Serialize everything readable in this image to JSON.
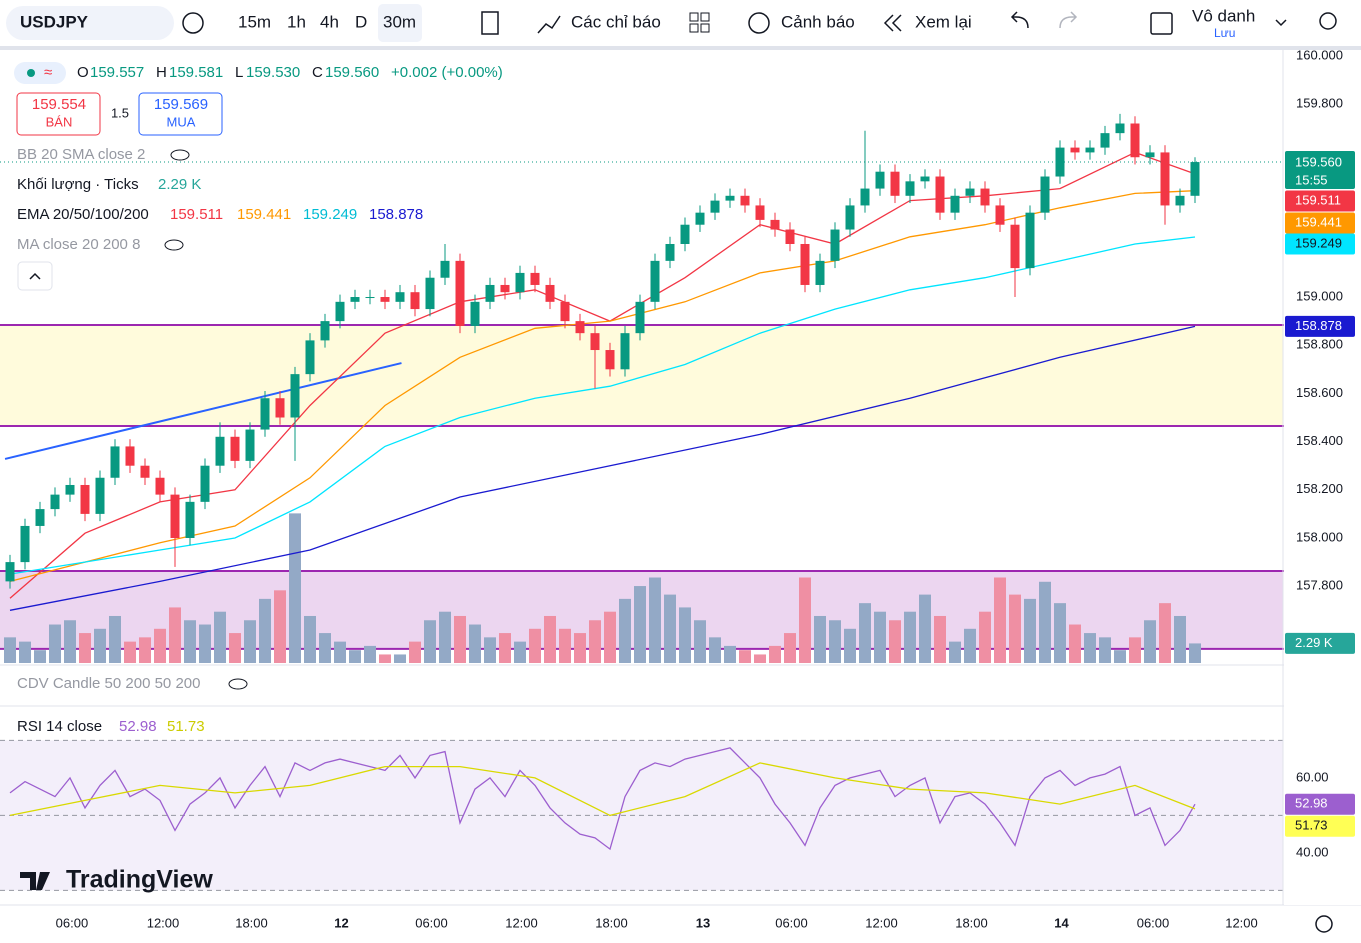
{
  "toolbar": {
    "symbol": "USDJPY",
    "intervals": [
      "15m",
      "1h",
      "4h",
      "D",
      "30m"
    ],
    "indicators": "Các chỉ báo",
    "alerts": "Cảnh báo",
    "replay": "Xem lại",
    "user": "Vô danh",
    "save": "Lưu"
  },
  "chart_data": {
    "type": "candlestick",
    "header": {
      "o": "O",
      "o_val": "159.557",
      "h": "H",
      "h_val": "159.581",
      "l": "L",
      "l_val": "159.530",
      "c": "C",
      "c_val": "159.560",
      "change": "+0.002 (+0.00%)",
      "sell": "159.554",
      "sell_label": "BÁN",
      "spread": "1.5",
      "buy": "159.569",
      "buy_label": "MUA",
      "countdown": "15:55"
    },
    "legends": {
      "bb": "BB 20 SMA close 2",
      "volume": "Khối lượng · Ticks",
      "volume_label": "2.29 K",
      "ema": "EMA 20/50/100/200",
      "ma": "MA close 20 200 8",
      "cdv": "CDV Candle 50 200 50 200",
      "rsi": "RSI 14 close"
    },
    "watermark": "TradingView",
    "up_color": "#089981",
    "down_color": "#f23645",
    "vol_up_color": "#93a9c6",
    "vol_down_color": "#ef8fa3",
    "xlim": [
      -0.667,
      84.867
    ],
    "xticks": [
      {
        "value": 4.13,
        "label": "06:00"
      },
      {
        "value": 10.2,
        "label": "12:00"
      },
      {
        "value": 16.1,
        "label": "18:00"
      },
      {
        "value": 22.1,
        "label": "12"
      },
      {
        "value": 28.1,
        "label": "06:00"
      },
      {
        "value": 34.1,
        "label": "12:00"
      },
      {
        "value": 40.1,
        "label": "18:00"
      },
      {
        "value": 46.2,
        "label": "13"
      },
      {
        "value": 52.1,
        "label": "06:00"
      },
      {
        "value": 58.1,
        "label": "12:00"
      },
      {
        "value": 64.1,
        "label": "18:00"
      },
      {
        "value": 70.1,
        "label": "14"
      },
      {
        "value": 76.2,
        "label": "06:00"
      },
      {
        "value": 82.1,
        "label": "12:00"
      }
    ],
    "ylim": [
      157.473,
      160.025
    ],
    "yticks": [
      {
        "value": 160,
        "label": "160.000"
      },
      {
        "value": 159.8,
        "label": "159.800"
      },
      {
        "value": 159,
        "label": "159.000"
      },
      {
        "value": 158.8,
        "label": "158.800"
      },
      {
        "value": 158.6,
        "label": "158.600"
      },
      {
        "value": 158.4,
        "label": "158.400"
      },
      {
        "value": 158.2,
        "label": "158.200"
      },
      {
        "value": 158,
        "label": "158.000"
      },
      {
        "value": 157.8,
        "label": "157.800"
      }
    ],
    "grid": false,
    "candles": {
      "open": [
        157.82,
        157.9,
        158.05,
        158.12,
        158.18,
        158.22,
        158.1,
        158.25,
        158.38,
        158.3,
        158.25,
        158.18,
        158.0,
        158.15,
        158.3,
        158.42,
        158.32,
        158.45,
        158.58,
        158.5,
        158.68,
        158.82,
        158.9,
        158.98,
        159.0,
        159.0,
        158.98,
        159.02,
        158.95,
        159.08,
        159.15,
        158.88,
        158.98,
        159.05,
        159.02,
        159.1,
        159.05,
        158.98,
        158.9,
        158.85,
        158.78,
        158.7,
        158.85,
        158.98,
        159.15,
        159.22,
        159.3,
        159.35,
        159.4,
        159.42,
        159.38,
        159.32,
        159.28,
        159.22,
        159.05,
        159.15,
        159.28,
        159.38,
        159.45,
        159.52,
        159.42,
        159.48,
        159.5,
        159.35,
        159.42,
        159.45,
        159.38,
        159.3,
        159.12,
        159.35,
        159.5,
        159.62,
        159.6,
        159.62,
        159.68,
        159.72,
        159.58,
        159.6,
        159.38,
        159.42
      ],
      "high": [
        157.93,
        158.08,
        158.15,
        158.21,
        158.25,
        158.25,
        158.28,
        158.41,
        158.41,
        158.33,
        158.28,
        158.21,
        158.18,
        158.33,
        158.48,
        158.45,
        158.48,
        158.61,
        158.61,
        158.71,
        158.85,
        158.93,
        159.01,
        159.03,
        159.03,
        159.03,
        159.05,
        159.05,
        159.11,
        159.22,
        159.18,
        159.01,
        159.08,
        159.08,
        159.13,
        159.13,
        159.08,
        159.01,
        158.93,
        158.88,
        158.81,
        158.88,
        159.01,
        159.18,
        159.25,
        159.33,
        159.38,
        159.43,
        159.45,
        159.45,
        159.41,
        159.35,
        159.31,
        159.25,
        159.18,
        159.31,
        159.41,
        159.69,
        159.55,
        159.55,
        159.51,
        159.53,
        159.53,
        159.45,
        159.48,
        159.48,
        159.41,
        159.33,
        159.38,
        159.53,
        159.65,
        159.65,
        159.65,
        159.71,
        159.76,
        159.75,
        159.63,
        159.63,
        159.45,
        159.58
      ],
      "low": [
        157.79,
        157.87,
        158.02,
        158.09,
        158.15,
        158.07,
        158.07,
        158.22,
        158.27,
        158.22,
        158.15,
        157.88,
        157.97,
        158.12,
        158.27,
        158.29,
        158.29,
        158.42,
        158.47,
        158.32,
        158.65,
        158.79,
        158.87,
        158.95,
        158.97,
        158.95,
        158.95,
        158.92,
        158.92,
        159.05,
        158.85,
        158.85,
        158.95,
        158.99,
        158.99,
        159.02,
        158.95,
        158.87,
        158.82,
        158.62,
        158.67,
        158.67,
        158.82,
        158.95,
        159.12,
        159.19,
        159.27,
        159.32,
        159.37,
        159.35,
        159.29,
        159.25,
        159.19,
        159.02,
        159.02,
        159.12,
        159.25,
        159.35,
        159.42,
        159.39,
        159.39,
        159.45,
        159.32,
        159.32,
        159.39,
        159.35,
        159.27,
        159.0,
        159.09,
        159.32,
        159.47,
        159.57,
        159.57,
        159.59,
        159.65,
        159.55,
        159.55,
        159.3,
        159.35,
        159.39
      ],
      "close": [
        157.9,
        158.05,
        158.12,
        158.18,
        158.22,
        158.1,
        158.25,
        158.38,
        158.3,
        158.25,
        158.18,
        158.0,
        158.15,
        158.3,
        158.42,
        158.32,
        158.45,
        158.58,
        158.5,
        158.68,
        158.82,
        158.9,
        158.98,
        159.0,
        159.0,
        158.98,
        159.02,
        158.95,
        159.08,
        159.15,
        158.88,
        158.98,
        159.05,
        159.02,
        159.1,
        159.05,
        158.98,
        158.9,
        158.85,
        158.78,
        158.7,
        158.85,
        158.98,
        159.15,
        159.22,
        159.3,
        159.35,
        159.4,
        159.42,
        159.38,
        159.32,
        159.28,
        159.22,
        159.05,
        159.15,
        159.28,
        159.38,
        159.45,
        159.52,
        159.42,
        159.48,
        159.5,
        159.35,
        159.42,
        159.45,
        159.38,
        159.3,
        159.12,
        159.35,
        159.5,
        159.62,
        159.6,
        159.62,
        159.68,
        159.72,
        159.58,
        159.6,
        159.38,
        159.42,
        159.56
      ]
    },
    "vol_ylim": [
      0,
      20
    ],
    "volume": [
      3,
      2.5,
      1.5,
      4.5,
      5,
      3.5,
      4,
      5.5,
      2.5,
      3,
      4,
      6.5,
      5,
      4.5,
      6,
      3.5,
      5,
      7.5,
      8.5,
      17.5,
      5.5,
      3.5,
      2.5,
      1.5,
      2,
      1,
      1,
      2.5,
      5,
      6,
      5.5,
      4.5,
      3,
      3.5,
      2.5,
      4,
      5.5,
      4,
      3.5,
      5,
      6,
      7.5,
      9,
      10,
      8,
      6.5,
      5,
      3,
      2,
      1.5,
      1,
      2,
      3.5,
      10,
      5.5,
      5,
      4,
      7,
      6,
      5,
      6,
      8,
      5.5,
      2.5,
      4,
      6,
      10,
      8,
      7.5,
      9.5,
      7,
      4.5,
      3.5,
      3,
      1.5,
      3,
      5,
      7,
      5.5,
      2.29
    ],
    "series": [
      {
        "color": "#f23645",
        "label_text": "#ffffff",
        "x": [
          0,
          5,
          10,
          15,
          20,
          25,
          30,
          35,
          40,
          45,
          50,
          55,
          60,
          65,
          70,
          75,
          79
        ],
        "values": [
          157.75,
          158.02,
          158.15,
          158.2,
          158.55,
          158.85,
          158.98,
          159.03,
          158.9,
          159.08,
          159.3,
          159.22,
          159.4,
          159.42,
          159.45,
          159.6,
          159.511
        ]
      },
      {
        "color": "#ff9800",
        "label_text": "#ffffff",
        "x": [
          0,
          10,
          15,
          20,
          25,
          30,
          35,
          40,
          45,
          50,
          55,
          60,
          65,
          70,
          75,
          79
        ],
        "values": [
          157.82,
          157.98,
          158.05,
          158.25,
          158.55,
          158.75,
          158.87,
          158.9,
          158.98,
          159.1,
          159.15,
          159.25,
          159.3,
          159.37,
          159.43,
          159.441
        ]
      },
      {
        "color": "#00e5ff",
        "label_text": "#131722",
        "x": [
          0,
          10,
          15,
          20,
          25,
          30,
          35,
          40,
          45,
          50,
          55,
          60,
          65,
          70,
          75,
          79
        ],
        "values": [
          157.85,
          157.95,
          158,
          158.15,
          158.38,
          158.5,
          158.58,
          158.63,
          158.72,
          158.85,
          158.95,
          159.03,
          159.08,
          159.15,
          159.22,
          159.249
        ]
      },
      {
        "color": "#1a1ad0",
        "label_text": "#ffffff",
        "x": [
          0,
          10,
          20,
          30,
          40,
          50,
          60,
          70,
          79
        ],
        "values": [
          157.7,
          157.82,
          157.95,
          158.17,
          158.3,
          158.43,
          158.58,
          158.75,
          158.878
        ]
      }
    ],
    "zones": [
      {
        "top": 158.884,
        "bottom": 158.465,
        "fill": "#fffbdc",
        "stroke": "#9c27b0"
      },
      {
        "top": 157.863,
        "bottom": 157.54,
        "fill": "#ecd6f0",
        "stroke": "#9c27b0"
      }
    ],
    "trendline": {
      "x": [
        -0.33,
        26.1
      ],
      "y": [
        158.328,
        158.726
      ],
      "color": "#2962ff"
    },
    "rsi_ylim": [
      26.1,
      78.9
    ],
    "rsi_yticks": [
      {
        "value": 60,
        "label": "60.00"
      },
      {
        "value": 40,
        "label": "40.00"
      }
    ],
    "rsi_bands": [
      70,
      50,
      30
    ],
    "rsi": {
      "color": "#9c5fcf",
      "values": [
        56,
        59,
        57,
        55,
        60,
        52,
        58,
        62,
        55,
        57,
        54,
        46,
        53,
        56,
        60,
        52,
        58,
        63,
        55,
        64,
        62,
        64,
        65,
        64,
        63,
        62,
        66,
        60,
        66,
        67,
        48,
        57,
        60,
        55,
        62,
        58,
        52,
        48,
        45,
        44,
        41,
        55,
        62,
        64,
        63,
        65,
        66,
        67,
        68,
        64,
        60,
        53,
        48,
        42,
        52,
        58,
        60,
        61,
        62,
        55,
        58,
        60,
        48,
        55,
        56,
        53,
        48,
        42,
        55,
        60,
        62,
        58,
        60,
        61,
        63,
        50,
        52,
        42,
        46,
        52.98
      ]
    },
    "rsi_ma": {
      "color": "#d9d900",
      "x": [
        0,
        5,
        10,
        15,
        20,
        25,
        30,
        35,
        40,
        45,
        50,
        55,
        60,
        65,
        70,
        75,
        79
      ],
      "values": [
        50,
        54,
        58,
        56,
        58,
        63,
        63,
        60,
        50,
        55,
        64,
        60,
        57,
        56,
        53,
        58,
        51.73
      ]
    }
  }
}
